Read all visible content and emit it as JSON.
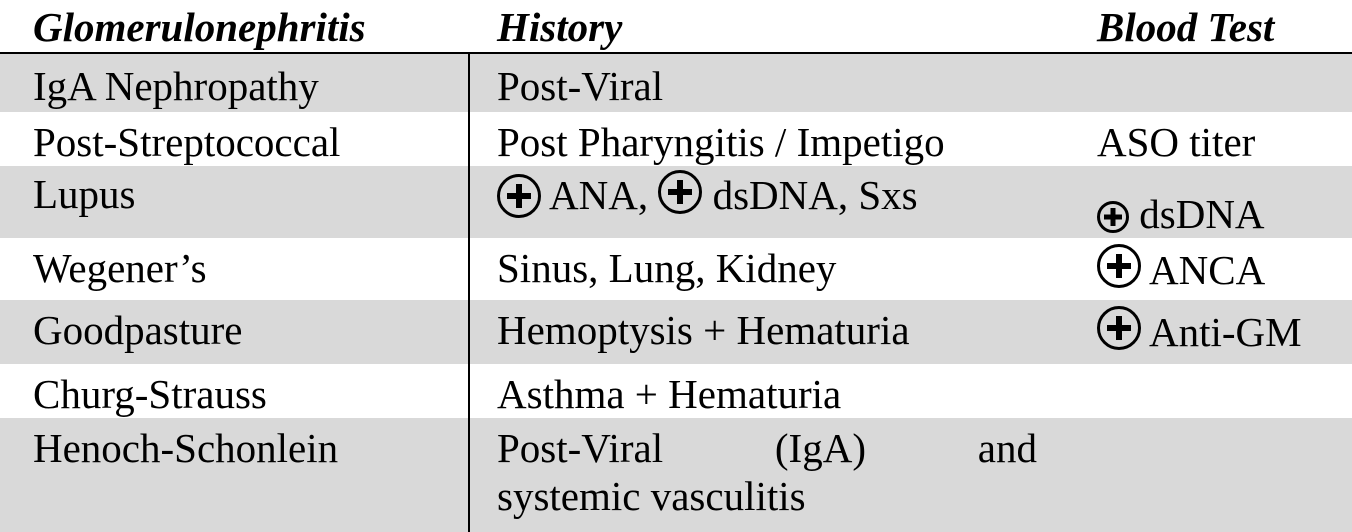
{
  "headers": {
    "col1": "Glomerulonephritis",
    "col2": "History",
    "col3": "Blood Test"
  },
  "rows": [
    {
      "name": "IgA Nephropathy",
      "history": "Post-Viral",
      "blood": ""
    },
    {
      "name": "Post-Streptococcal",
      "history": "Post Pharyngitis / Impetigo",
      "blood": "ASO titer"
    },
    {
      "name": "Lupus",
      "history_a": "ANA,",
      "history_b": "dsDNA, Sxs",
      "blood": "dsDNA"
    },
    {
      "name": "Wegener’s",
      "history": "Sinus, Lung, Kidney",
      "blood": "ANCA"
    },
    {
      "name": "Goodpasture",
      "history": "Hemoptysis + Hematuria",
      "blood": "Anti-GM"
    },
    {
      "name": "Churg-Strauss",
      "history": "Asthma + Hematuria",
      "blood": ""
    },
    {
      "name": "Henoch-Schonlein",
      "history_w1": "Post-Viral",
      "history_w2": "(IgA)",
      "history_w3": "and",
      "history_line2": "systemic vasculitis",
      "blood": ""
    }
  ],
  "colors": {
    "shade": "#d9d9d9",
    "text": "#000000"
  },
  "icons": [
    "plus-circle-icon"
  ]
}
